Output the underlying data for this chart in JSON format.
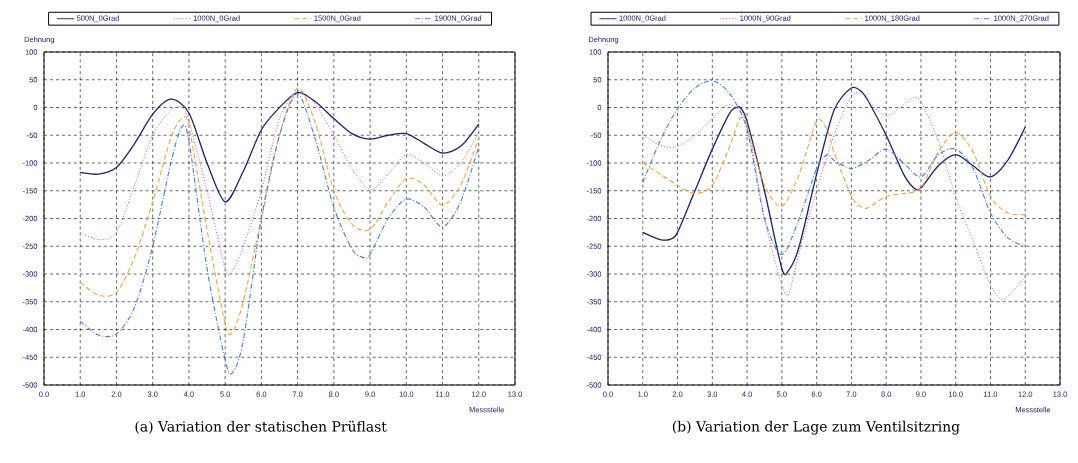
{
  "chart_data": [
    {
      "type": "line",
      "title": "(a) Variation der statischen Prüflast",
      "xlabel": "Messstelle",
      "ylabel": "Dehnung",
      "legend": "top",
      "grid": true,
      "xlim": [
        0,
        13
      ],
      "ylim": [
        -500,
        100
      ],
      "xticks": [
        {
          "value": 0,
          "label": "0.0"
        },
        {
          "value": 1,
          "label": "1.0"
        },
        {
          "value": 2,
          "label": "2.0"
        },
        {
          "value": 3,
          "label": "3.0"
        },
        {
          "value": 4,
          "label": "4.0"
        },
        {
          "value": 5,
          "label": "5.0"
        },
        {
          "value": 6,
          "label": "6.0"
        },
        {
          "value": 7,
          "label": "7.0"
        },
        {
          "value": 8,
          "label": "8.0"
        },
        {
          "value": 9,
          "label": "9.0"
        },
        {
          "value": 10,
          "label": "10.0"
        },
        {
          "value": 11,
          "label": "11.0"
        },
        {
          "value": 12,
          "label": "12.0"
        },
        {
          "value": 13,
          "label": "13.0"
        }
      ],
      "yticks": [
        100,
        50,
        0,
        -50,
        -100,
        -150,
        -200,
        -250,
        -300,
        -350,
        -400,
        -450,
        -500
      ],
      "series": [
        {
          "name": "500N_0Grad",
          "color": "#1a2370",
          "line_style": "solid",
          "x": [
            1,
            1.5,
            2,
            2.5,
            3,
            3.5,
            4,
            4.5,
            5,
            5.5,
            6,
            6.5,
            7,
            7.5,
            8,
            8.5,
            9,
            9.5,
            10,
            10.5,
            11,
            11.5,
            12
          ],
          "values": [
            -117,
            -120,
            -108,
            -65,
            -12,
            15,
            -10,
            -100,
            -170,
            -115,
            -40,
            0,
            27,
            10,
            -20,
            -47,
            -57,
            -50,
            -47,
            -65,
            -82,
            -70,
            -30
          ]
        },
        {
          "name": "1000N_0Grad",
          "color": "#e8508a",
          "line_style": "dotted",
          "x": [
            1,
            1.5,
            2,
            2.5,
            3,
            3.5,
            3.8,
            4,
            4.5,
            5,
            5.2,
            5.5,
            6,
            6.5,
            7,
            7.5,
            8,
            8.5,
            9,
            9.5,
            10,
            10.5,
            11,
            11.5,
            12
          ],
          "values": [
            -225,
            -238,
            -225,
            -140,
            -50,
            -5,
            0,
            -25,
            -150,
            -290,
            -295,
            -250,
            -150,
            -20,
            30,
            5,
            -50,
            -110,
            -148,
            -120,
            -85,
            -100,
            -123,
            -100,
            -45
          ]
        },
        {
          "name": "1500N_0Grad",
          "color": "#f5a040",
          "line_style": "dashed",
          "x": [
            1,
            1.5,
            2,
            2.5,
            3,
            3.5,
            3.8,
            4,
            4.5,
            5,
            5.2,
            5.5,
            6,
            6.5,
            7,
            7.5,
            8,
            8.5,
            9,
            9.5,
            10,
            10.5,
            11,
            11.5,
            12
          ],
          "values": [
            -315,
            -338,
            -333,
            -270,
            -170,
            -55,
            -20,
            -35,
            -220,
            -390,
            -405,
            -350,
            -200,
            -50,
            35,
            -30,
            -150,
            -210,
            -220,
            -170,
            -128,
            -140,
            -176,
            -140,
            -55
          ]
        },
        {
          "name": "1900N_0Grad",
          "color": "#4a7ce0",
          "line_style": "dashdot",
          "x": [
            1,
            1.5,
            2,
            2.5,
            3,
            3.5,
            3.8,
            4,
            4.5,
            5,
            5.2,
            5.5,
            6,
            6.5,
            7,
            7.5,
            8,
            8.5,
            8.8,
            9,
            9.5,
            10,
            10.5,
            11,
            11.5,
            12
          ],
          "values": [
            -385,
            -410,
            -408,
            -360,
            -250,
            -100,
            -35,
            -60,
            -290,
            -455,
            -478,
            -420,
            -200,
            -50,
            25,
            -60,
            -180,
            -255,
            -270,
            -265,
            -200,
            -165,
            -180,
            -215,
            -170,
            -70
          ]
        }
      ]
    },
    {
      "type": "line",
      "title": "(b) Variation der Lage zum Ventilsitzring",
      "xlabel": "Messstelle",
      "ylabel": "Dehnung",
      "legend": "top",
      "grid": true,
      "xlim": [
        0,
        13
      ],
      "ylim": [
        -500,
        100
      ],
      "xticks": [
        {
          "value": 0,
          "label": "0.0"
        },
        {
          "value": 1,
          "label": "1.0"
        },
        {
          "value": 2,
          "label": "2.0"
        },
        {
          "value": 3,
          "label": "3.0"
        },
        {
          "value": 4,
          "label": "4.0"
        },
        {
          "value": 5,
          "label": "5.0"
        },
        {
          "value": 6,
          "label": "6.0"
        },
        {
          "value": 7,
          "label": "7.0"
        },
        {
          "value": 8,
          "label": "8.0"
        },
        {
          "value": 9,
          "label": "9.0"
        },
        {
          "value": 10,
          "label": "10.0"
        },
        {
          "value": 11,
          "label": "11.0"
        },
        {
          "value": 12,
          "label": "12.0"
        },
        {
          "value": 13,
          "label": "13.0"
        }
      ],
      "yticks": [
        100,
        50,
        0,
        -50,
        -100,
        -150,
        -200,
        -250,
        -300,
        -350,
        -400,
        -450,
        -500
      ],
      "series": [
        {
          "name": "1000N_0Grad",
          "color": "#1a2370",
          "line_style": "solid",
          "x": [
            1,
            1.5,
            1.8,
            2,
            2.5,
            3,
            3.5,
            3.7,
            3.8,
            4,
            4.5,
            5,
            5.2,
            5.5,
            6,
            6.5,
            7,
            7.3,
            7.5,
            8,
            8.5,
            8.8,
            9,
            9.5,
            10,
            10.5,
            11,
            11.5,
            12
          ],
          "values": [
            -225,
            -238,
            -237,
            -225,
            -150,
            -75,
            -10,
            0,
            0,
            -25,
            -150,
            -290,
            -293,
            -250,
            -120,
            -5,
            35,
            28,
            10,
            -50,
            -120,
            -145,
            -145,
            -105,
            -85,
            -105,
            -125,
            -95,
            -35
          ]
        },
        {
          "name": "1000N_90Grad",
          "color": "#e8508a",
          "line_style": "dotted",
          "x": [
            1,
            1.5,
            1.8,
            2,
            2.5,
            3,
            3.5,
            4,
            4.5,
            5,
            5.2,
            5.5,
            6,
            6.5,
            7,
            7.3,
            7.5,
            8,
            8.5,
            8.8,
            9,
            9.5,
            10,
            10.5,
            11,
            11.3,
            11.5,
            12
          ],
          "values": [
            -50,
            -68,
            -72,
            -70,
            -50,
            -20,
            5,
            -30,
            -200,
            -320,
            -335,
            -260,
            -150,
            -50,
            20,
            25,
            10,
            -15,
            5,
            18,
            10,
            -60,
            -160,
            -240,
            -320,
            -345,
            -340,
            -305
          ]
        },
        {
          "name": "1000N_180Grad",
          "color": "#f5a040",
          "line_style": "dashed",
          "x": [
            1,
            1.5,
            2,
            2.5,
            3,
            3.5,
            3.8,
            4,
            4.5,
            5,
            5.5,
            6,
            6.3,
            6.5,
            7,
            7.3,
            7.5,
            8,
            8.5,
            9,
            9.5,
            10,
            10.5,
            11,
            11.5,
            12
          ],
          "values": [
            -100,
            -120,
            -140,
            -155,
            -140,
            -70,
            -20,
            -35,
            -140,
            -178,
            -120,
            -25,
            -40,
            -80,
            -160,
            -180,
            -180,
            -160,
            -155,
            -145,
            -80,
            -45,
            -80,
            -160,
            -190,
            -193
          ]
        },
        {
          "name": "1000N_270Grad",
          "color": "#4a7ce0",
          "line_style": "dashdot",
          "x": [
            1,
            1.5,
            2,
            2.5,
            3,
            3.5,
            4,
            4.5,
            5,
            5.5,
            6,
            6.3,
            6.5,
            7,
            7.5,
            8,
            8.5,
            9,
            9.5,
            10,
            10.5,
            11,
            11.5,
            12
          ],
          "values": [
            -135,
            -60,
            -2,
            35,
            48,
            25,
            -40,
            -200,
            -265,
            -200,
            -110,
            -85,
            -95,
            -110,
            -95,
            -75,
            -100,
            -125,
            -85,
            -75,
            -110,
            -190,
            -235,
            -250
          ]
        }
      ]
    }
  ]
}
